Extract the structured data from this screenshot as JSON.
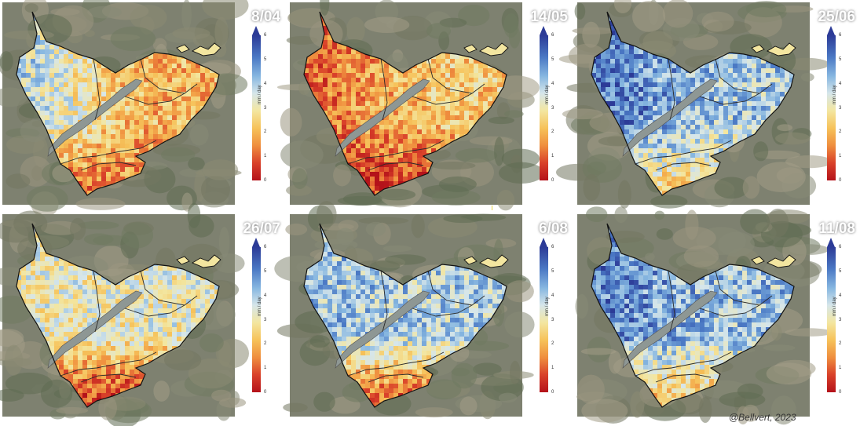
{
  "colorbar": {
    "unit": "mm / day",
    "ticks": [
      "6",
      "5",
      "4",
      "3",
      "2",
      "1",
      "0"
    ],
    "min": 0,
    "max": 6,
    "colors": [
      "#b4121a",
      "#d9412a",
      "#ef8e3e",
      "#f6c25a",
      "#f3e6a0",
      "#d6e6ea",
      "#86b6e0",
      "#4a78c4",
      "#2c3b97"
    ]
  },
  "panels": [
    {
      "date": "8/04",
      "wet_fraction_west": 0.72,
      "wet_fraction_east": 0.35,
      "south_level": 0.25
    },
    {
      "date": "14/05",
      "wet_fraction_west": 0.15,
      "wet_fraction_east": 0.4,
      "south_level": 0.1
    },
    {
      "date": "25/06",
      "wet_fraction_west": 0.92,
      "wet_fraction_east": 0.7,
      "south_level": 0.45
    },
    {
      "date": "26/07",
      "wet_fraction_west": 0.55,
      "wet_fraction_east": 0.55,
      "south_level": 0.12
    },
    {
      "date": "6/08",
      "wet_fraction_west": 0.72,
      "wet_fraction_east": 0.68,
      "south_level": 0.2
    },
    {
      "date": "11/08",
      "wet_fraction_west": 0.88,
      "wet_fraction_east": 0.72,
      "south_level": 0.4
    }
  ],
  "credit": "@Bellvert, 2023"
}
